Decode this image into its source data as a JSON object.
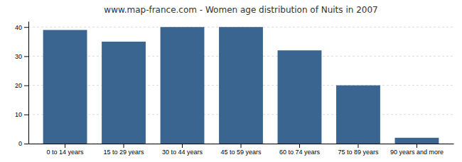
{
  "chart_data": {
    "type": "bar",
    "title": "www.map-france.com - Women age distribution of Nuits in 2007",
    "categories": [
      "0 to 14 years",
      "15 to 29 years",
      "30 to 44 years",
      "45 to 59 years",
      "60 to 74 years",
      "75 to 89 years",
      "90 years and more"
    ],
    "values": [
      39,
      35,
      40,
      40,
      32,
      20,
      2
    ],
    "color": "#3a6591",
    "ylim": [
      0,
      42
    ],
    "yticks": [
      0,
      10,
      20,
      30,
      40
    ],
    "grid": true
  }
}
